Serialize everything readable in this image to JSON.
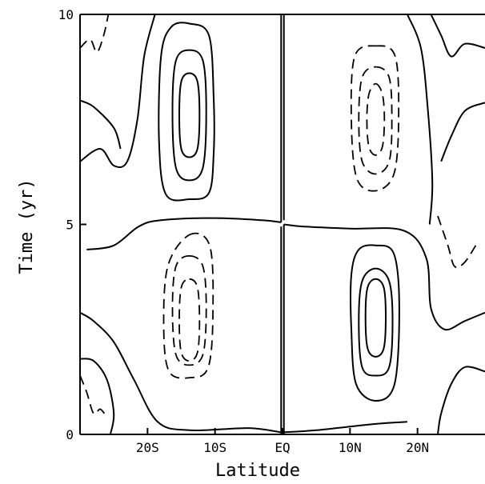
{
  "chart_data": {
    "type": "contour",
    "title": "",
    "xlabel": "Latitude",
    "ylabel": "Time (yr)",
    "x_ticks": [
      {
        "value": -20,
        "label": "20S"
      },
      {
        "value": -10,
        "label": "10S"
      },
      {
        "value": 0,
        "label": "EQ"
      },
      {
        "value": 10,
        "label": "10N"
      },
      {
        "value": 20,
        "label": "20N"
      }
    ],
    "y_ticks": [
      {
        "value": 0,
        "label": "0"
      },
      {
        "value": 5,
        "label": "5"
      },
      {
        "value": 10,
        "label": "10"
      }
    ],
    "xlim": [
      -30,
      30
    ],
    "ylim": [
      0,
      10
    ],
    "grid": false,
    "line_styles": {
      "solid": "positive contours",
      "dashed": "negative contours"
    },
    "contours": [
      {
        "style": "solid",
        "points": [
          [
            -13.8,
            9.78
          ],
          [
            -10.9,
            9.5
          ],
          [
            -10.2,
            8
          ],
          [
            -10.2,
            6.7
          ],
          [
            -10.9,
            5.75
          ],
          [
            -13.8,
            5.6
          ],
          [
            -17.3,
            5.72
          ],
          [
            -18.3,
            7
          ],
          [
            -18,
            9
          ],
          [
            -16.5,
            9.7
          ],
          [
            -13.8,
            9.78
          ]
        ]
      },
      {
        "style": "solid",
        "points": [
          [
            -13.8,
            9.15
          ],
          [
            -11.8,
            8.9
          ],
          [
            -11.3,
            7.7
          ],
          [
            -11.8,
            6.35
          ],
          [
            -13.8,
            6.05
          ],
          [
            -15.8,
            6.35
          ],
          [
            -16.3,
            7.7
          ],
          [
            -15.8,
            8.9
          ],
          [
            -13.8,
            9.15
          ]
        ]
      },
      {
        "style": "solid",
        "points": [
          [
            -13.8,
            8.6
          ],
          [
            -12.6,
            8.4
          ],
          [
            -12.3,
            7.6
          ],
          [
            -12.6,
            6.8
          ],
          [
            -13.8,
            6.6
          ],
          [
            -15,
            6.8
          ],
          [
            -15.3,
            7.6
          ],
          [
            -15,
            8.4
          ],
          [
            -13.8,
            8.6
          ]
        ]
      },
      {
        "style": "solid",
        "points": [
          [
            13.8,
            4.5
          ],
          [
            16.5,
            4.3
          ],
          [
            17.3,
            3
          ],
          [
            16.6,
            1.2
          ],
          [
            13.8,
            0.8
          ],
          [
            10.9,
            1.2
          ],
          [
            10.2,
            2.5
          ],
          [
            10.2,
            3.8
          ],
          [
            11.3,
            4.4
          ],
          [
            13.8,
            4.5
          ]
        ]
      },
      {
        "style": "solid",
        "points": [
          [
            13.8,
            3.95
          ],
          [
            15.8,
            3.65
          ],
          [
            16.3,
            2.7
          ],
          [
            15.8,
            1.6
          ],
          [
            13.8,
            1.4
          ],
          [
            11.8,
            1.6
          ],
          [
            11.3,
            2.7
          ],
          [
            11.8,
            3.65
          ],
          [
            13.8,
            3.95
          ]
        ]
      },
      {
        "style": "solid",
        "points": [
          [
            13.8,
            3.7
          ],
          [
            15,
            3.5
          ],
          [
            15.3,
            2.8
          ],
          [
            15,
            2.05
          ],
          [
            13.8,
            1.85
          ],
          [
            12.6,
            2.05
          ],
          [
            12.3,
            2.8
          ],
          [
            12.6,
            3.5
          ],
          [
            13.8,
            3.7
          ]
        ]
      },
      {
        "style": "dashed",
        "points": [
          [
            13.8,
            9.25
          ],
          [
            16.7,
            9
          ],
          [
            17.2,
            7.5
          ],
          [
            16.5,
            6.2
          ],
          [
            13.8,
            5.8
          ],
          [
            11,
            6.1
          ],
          [
            10.2,
            7.5
          ],
          [
            10.7,
            9
          ],
          [
            13.8,
            9.25
          ]
        ]
      },
      {
        "style": "dashed",
        "points": [
          [
            13.8,
            8.75
          ],
          [
            15.8,
            8.5
          ],
          [
            16.2,
            7.5
          ],
          [
            15.8,
            6.5
          ],
          [
            13.8,
            6.2
          ],
          [
            11.8,
            6.5
          ],
          [
            11.3,
            7.5
          ],
          [
            11.8,
            8.5
          ],
          [
            13.8,
            8.75
          ]
        ]
      },
      {
        "style": "dashed",
        "points": [
          [
            13.8,
            8.35
          ],
          [
            14.8,
            8.1
          ],
          [
            15.1,
            7.5
          ],
          [
            14.8,
            6.85
          ],
          [
            13.8,
            6.65
          ],
          [
            12.8,
            6.85
          ],
          [
            12.5,
            7.5
          ],
          [
            12.8,
            8.1
          ],
          [
            13.8,
            8.35
          ]
        ]
      },
      {
        "style": "dashed",
        "points": [
          [
            -13.8,
            4.75
          ],
          [
            -10.8,
            4.5
          ],
          [
            -10.3,
            3
          ],
          [
            -11,
            1.6
          ],
          [
            -13.8,
            1.35
          ],
          [
            -16.8,
            1.5
          ],
          [
            -17.6,
            2.5
          ],
          [
            -17,
            4
          ],
          [
            -13.8,
            4.75
          ]
        ]
      },
      {
        "style": "dashed",
        "points": [
          [
            -13.8,
            4.25
          ],
          [
            -11.8,
            4
          ],
          [
            -11.3,
            3
          ],
          [
            -11.8,
            1.9
          ],
          [
            -13.8,
            1.65
          ],
          [
            -15.8,
            1.9
          ],
          [
            -16.3,
            3
          ],
          [
            -15.8,
            4
          ],
          [
            -13.8,
            4.25
          ]
        ]
      },
      {
        "style": "dashed",
        "points": [
          [
            -13.8,
            3.7
          ],
          [
            -12.6,
            3.5
          ],
          [
            -12.3,
            2.7
          ],
          [
            -12.6,
            1.95
          ],
          [
            -13.8,
            1.75
          ],
          [
            -15,
            1.95
          ],
          [
            -15.3,
            2.7
          ],
          [
            -15,
            3.5
          ],
          [
            -13.8,
            3.7
          ]
        ]
      },
      {
        "style": "solid",
        "points": [
          [
            -0.2,
            10
          ],
          [
            -0.2,
            5.05
          ]
        ]
      },
      {
        "style": "solid",
        "points": [
          [
            0.2,
            10
          ],
          [
            0.2,
            5.1
          ]
        ]
      },
      {
        "style": "solid",
        "points": [
          [
            -0.2,
            0
          ],
          [
            -0.2,
            4.95
          ]
        ]
      },
      {
        "style": "solid",
        "points": [
          [
            0.2,
            0
          ],
          [
            0.2,
            5
          ]
        ]
      },
      {
        "style": "solid",
        "points": [
          [
            -0.2,
            5.05
          ],
          [
            -3,
            5.1
          ],
          [
            -10,
            5.15
          ],
          [
            -18,
            5.1
          ],
          [
            -21.3,
            4.95
          ],
          [
            -25,
            4.5
          ],
          [
            -29,
            4.4
          ]
        ]
      },
      {
        "style": "solid",
        "points": [
          [
            0.2,
            5
          ],
          [
            3,
            4.95
          ],
          [
            10,
            4.9
          ],
          [
            18,
            4.85
          ],
          [
            21.3,
            4.2
          ],
          [
            22,
            3
          ],
          [
            24,
            2.5
          ],
          [
            27,
            2.7
          ],
          [
            30,
            2.9
          ]
        ]
      },
      {
        "style": "solid",
        "points": [
          [
            -18.9,
            10
          ],
          [
            -20.5,
            9
          ],
          [
            -21.5,
            7.5
          ],
          [
            -23,
            6.5
          ],
          [
            -25,
            6.4
          ],
          [
            -27,
            6.8
          ],
          [
            -30,
            6.5
          ]
        ]
      },
      {
        "style": "solid",
        "points": [
          [
            -30,
            7.95
          ],
          [
            -28,
            7.8
          ],
          [
            -25,
            7.3
          ],
          [
            -24,
            6.8
          ]
        ]
      },
      {
        "style": "solid",
        "points": [
          [
            -30,
            2.9
          ],
          [
            -28,
            2.7
          ],
          [
            -25,
            2.2
          ],
          [
            -22,
            1.3
          ],
          [
            -18.5,
            0.3
          ],
          [
            -13.8,
            0.1
          ],
          [
            -5,
            0.15
          ],
          [
            -0.2,
            0.05
          ]
        ]
      },
      {
        "style": "solid",
        "points": [
          [
            0.2,
            0.05
          ],
          [
            5,
            0.1
          ],
          [
            13.8,
            0.25
          ],
          [
            18.5,
            0.3
          ]
        ]
      },
      {
        "style": "solid",
        "points": [
          [
            -30,
            1.8
          ],
          [
            -28,
            1.75
          ],
          [
            -26,
            1.3
          ],
          [
            -25,
            0.5
          ],
          [
            -25.5,
            0
          ]
        ]
      },
      {
        "style": "solid",
        "points": [
          [
            18.5,
            10
          ],
          [
            20.5,
            9.2
          ],
          [
            21.5,
            7.8
          ],
          [
            22.2,
            6
          ],
          [
            21.8,
            5
          ]
        ]
      },
      {
        "style": "solid",
        "points": [
          [
            22,
            10
          ],
          [
            23.5,
            9.5
          ],
          [
            25,
            9
          ],
          [
            27,
            9.3
          ],
          [
            30,
            9.2
          ]
        ]
      },
      {
        "style": "solid",
        "points": [
          [
            30,
            7.9
          ],
          [
            27,
            7.7
          ],
          [
            25,
            7.1
          ],
          [
            23.5,
            6.5
          ]
        ]
      },
      {
        "style": "solid",
        "points": [
          [
            30,
            1.5
          ],
          [
            27,
            1.6
          ],
          [
            25,
            1.2
          ],
          [
            23.5,
            0.5
          ],
          [
            23,
            0
          ]
        ]
      },
      {
        "style": "dashed",
        "points": [
          [
            -30,
            9.2
          ],
          [
            -28.5,
            9.4
          ],
          [
            -27.5,
            9.1
          ],
          [
            -26.5,
            9.5
          ],
          [
            -25.8,
            10
          ]
        ]
      },
      {
        "style": "dashed",
        "points": [
          [
            -30,
            1.4
          ],
          [
            -29,
            1
          ],
          [
            -28,
            0.5
          ],
          [
            -27,
            0.6
          ],
          [
            -26,
            0.4
          ]
        ]
      },
      {
        "style": "dashed",
        "points": [
          [
            23,
            5.2
          ],
          [
            24.5,
            4.5
          ],
          [
            25.5,
            4
          ],
          [
            27,
            4.1
          ],
          [
            29,
            4.6
          ]
        ]
      }
    ]
  }
}
